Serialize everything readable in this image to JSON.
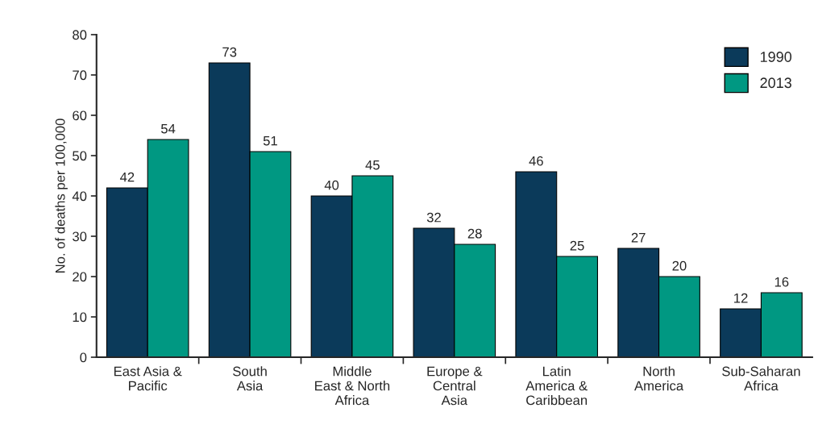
{
  "chart_data": {
    "type": "bar",
    "ylabel": "No. of deaths per 100,000",
    "categories": [
      "East Asia &\nPacific",
      "South\nAsia",
      "Middle\nEast & North\nAfrica",
      "Europe &\nCentral\nAsia",
      "Latin\nAmerica &\nCaribbean",
      "North\nAmerica",
      "Sub-Saharan\nAfrica"
    ],
    "series": [
      {
        "name": "1990",
        "color": "#0b3a5a",
        "values": [
          42,
          73,
          40,
          32,
          46,
          27,
          12
        ]
      },
      {
        "name": "2013",
        "color": "#009882",
        "values": [
          54,
          51,
          45,
          28,
          25,
          20,
          16
        ]
      }
    ],
    "ylim": [
      0,
      80
    ],
    "yticks": [
      0,
      10,
      20,
      30,
      40,
      50,
      60,
      70,
      80
    ],
    "data_labels": true,
    "grid": false,
    "legend": "top right"
  }
}
